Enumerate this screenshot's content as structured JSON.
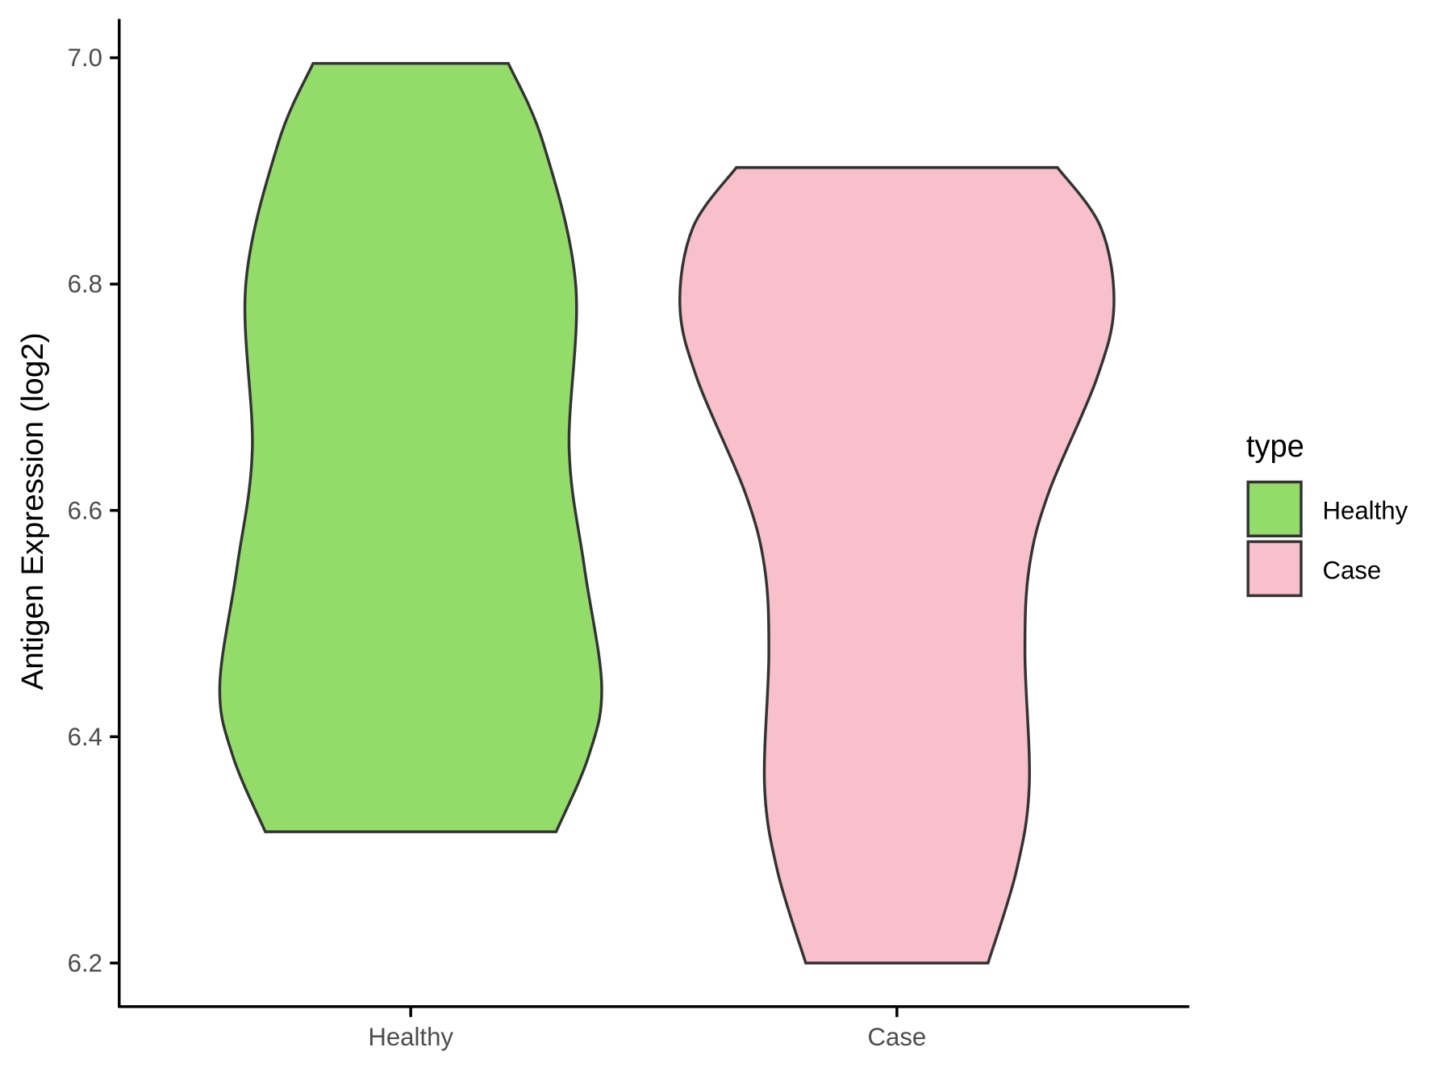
{
  "chart_data": {
    "type": "violin",
    "title": "",
    "xlabel": "",
    "ylabel": "Antigen Expression (log2)",
    "ylim": [
      6.16,
      7.035
    ],
    "yticks": [
      "6.2",
      "6.4",
      "6.6",
      "6.8",
      "7.0"
    ],
    "ytick_values": [
      6.2,
      6.4,
      6.6,
      6.8,
      7.0
    ],
    "categories": [
      "Healthy",
      "Case"
    ],
    "grid": false,
    "legend": {
      "title": "type",
      "position": "right",
      "entries": [
        "Healthy",
        "Case"
      ]
    },
    "series": [
      {
        "name": "Healthy",
        "color": "#93dc6a",
        "min": 6.316,
        "max": 6.995,
        "y": [
          6.995,
          6.925,
          6.8,
          6.654,
          6.55,
          6.445,
          6.383,
          6.316
        ],
        "relative_density": [
          0.45,
          0.61,
          0.76,
          0.73,
          0.8,
          0.88,
          0.82,
          0.67
        ]
      },
      {
        "name": "Case",
        "color": "#f7c0cb",
        "min": 6.2,
        "max": 6.903,
        "y": [
          6.903,
          6.85,
          6.781,
          6.716,
          6.616,
          6.55,
          6.474,
          6.357,
          6.281,
          6.2
        ],
        "relative_density": [
          0.74,
          0.94,
          1.0,
          0.92,
          0.7,
          0.61,
          0.59,
          0.61,
          0.55,
          0.42
        ]
      }
    ]
  }
}
